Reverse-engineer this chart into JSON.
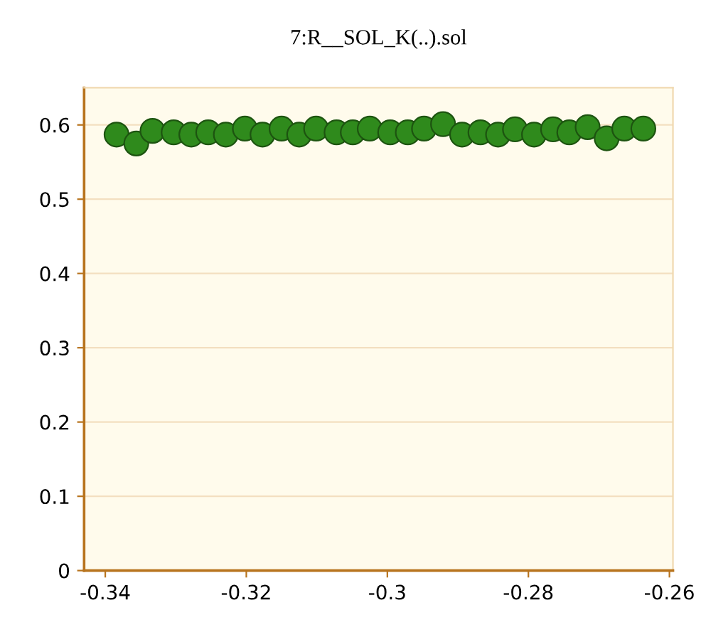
{
  "chart_data": {
    "type": "scatter",
    "title": "7:R__SOL_K(..).sol",
    "x": [
      -0.3384,
      -0.3356,
      -0.3333,
      -0.3303,
      -0.3278,
      -0.3254,
      -0.3229,
      -0.3202,
      -0.3177,
      -0.315,
      -0.3125,
      -0.3101,
      -0.3072,
      -0.3049,
      -0.3025,
      -0.2996,
      -0.2971,
      -0.2948,
      -0.2921,
      -0.2894,
      -0.2868,
      -0.2843,
      -0.2819,
      -0.2792,
      -0.2765,
      -0.2742,
      -0.2716,
      -0.2689,
      -0.2664,
      -0.2637
    ],
    "values": [
      0.587,
      0.575,
      0.592,
      0.59,
      0.587,
      0.59,
      0.587,
      0.595,
      0.587,
      0.595,
      0.587,
      0.595,
      0.59,
      0.59,
      0.595,
      0.59,
      0.59,
      0.595,
      0.601,
      0.587,
      0.59,
      0.587,
      0.594,
      0.587,
      0.594,
      0.59,
      0.597,
      0.582,
      0.595,
      0.595
    ],
    "color": "#2f8a1c",
    "marker": "circle",
    "xlim": [
      -0.343,
      -0.2595
    ],
    "ylim": [
      0,
      0.65
    ],
    "xticks": [
      -0.34,
      -0.32,
      {
        "value": -0.3,
        "label": "-0.3"
      },
      -0.28,
      -0.26
    ],
    "yticks": [
      0,
      0.1,
      0.2,
      0.3,
      0.4,
      0.5,
      0.6
    ],
    "grid": "y"
  }
}
